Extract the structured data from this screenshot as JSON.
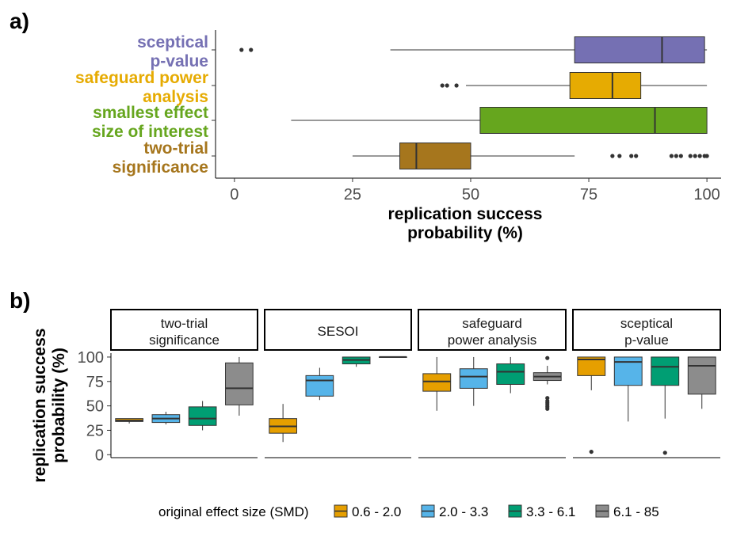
{
  "panel_a_label": "a)",
  "panel_b_label": "b)",
  "colors": {
    "sceptical": "#7570b3",
    "safeguard": "#e6ab02",
    "sesoi": "#66a61e",
    "two_trial": "#a6761d",
    "g1": "#E69F00",
    "g2": "#56B4E9",
    "g3": "#009E73",
    "g4": "#8C8C8C"
  },
  "chart_data": [
    {
      "type": "boxplot",
      "orientation": "horizontal",
      "xlabel": "replication success\nprobability (%)",
      "xlim": [
        -4,
        103
      ],
      "xticks": [
        0,
        25,
        50,
        75,
        100
      ],
      "categories": [
        {
          "label": "sceptical\np-value",
          "color": "#7570b3",
          "whisker_low": 33,
          "q1": 72,
          "median": 90.5,
          "q3": 99.5,
          "whisker_high": 100,
          "outliers": [
            1.5,
            3.5
          ]
        },
        {
          "label": "safeguard power\nanalysis",
          "color": "#e6ab02",
          "whisker_low": 49,
          "q1": 71,
          "median": 80,
          "q3": 86,
          "whisker_high": 100,
          "outliers": [
            44,
            45,
            47
          ]
        },
        {
          "label": "smallest effect\nsize of interest",
          "color": "#66a61e",
          "whisker_low": 12,
          "q1": 52,
          "median": 89,
          "q3": 100,
          "whisker_high": 100,
          "outliers": []
        },
        {
          "label": "two-trial\nsignificance",
          "color": "#a6761d",
          "whisker_low": 25,
          "q1": 35,
          "median": 38.5,
          "q3": 50,
          "whisker_high": 72,
          "outliers": [
            80,
            81.5,
            84,
            85,
            92.5,
            93.5,
            94.5,
            96.5,
            97.5,
            98.5,
            99.5,
            100
          ]
        }
      ]
    },
    {
      "type": "boxplot",
      "orientation": "vertical",
      "facets": [
        {
          "title": "two-trial\nsignificance",
          "boxes": [
            {
              "whisker_low": 32,
              "q1": 34,
              "median": 35,
              "q3": 37,
              "whisker_high": 37,
              "outliers": []
            },
            {
              "whisker_low": 31,
              "q1": 33,
              "median": 37,
              "q3": 41,
              "whisker_high": 44,
              "outliers": []
            },
            {
              "whisker_low": 25,
              "q1": 30,
              "median": 37,
              "q3": 49,
              "whisker_high": 55,
              "outliers": []
            },
            {
              "whisker_low": 40,
              "q1": 51,
              "median": 68,
              "q3": 94,
              "whisker_high": 100,
              "outliers": []
            }
          ]
        },
        {
          "title": "SESOI",
          "boxes": [
            {
              "whisker_low": 13,
              "q1": 22,
              "median": 29,
              "q3": 37,
              "whisker_high": 52,
              "outliers": []
            },
            {
              "whisker_low": 56,
              "q1": 60,
              "median": 76,
              "q3": 81,
              "whisker_high": 89,
              "outliers": []
            },
            {
              "whisker_low": 90,
              "q1": 93,
              "median": 97,
              "q3": 100,
              "whisker_high": 100,
              "outliers": []
            },
            {
              "whisker_low": 100,
              "q1": 100,
              "median": 100,
              "q3": 100,
              "whisker_high": 100,
              "outliers": []
            }
          ]
        },
        {
          "title": "safeguard\npower analysis",
          "boxes": [
            {
              "whisker_low": 45,
              "q1": 65,
              "median": 75,
              "q3": 83,
              "whisker_high": 100,
              "outliers": []
            },
            {
              "whisker_low": 50,
              "q1": 68,
              "median": 80,
              "q3": 88,
              "whisker_high": 100,
              "outliers": []
            },
            {
              "whisker_low": 63,
              "q1": 72,
              "median": 85,
              "q3": 93,
              "whisker_high": 100,
              "outliers": []
            },
            {
              "whisker_low": 72,
              "q1": 76,
              "median": 80,
              "q3": 84,
              "whisker_high": 91,
              "outliers": [
                47,
                49,
                51,
                53,
                55,
                58,
                99
              ]
            }
          ]
        },
        {
          "title": "sceptical\np-value",
          "boxes": [
            {
              "whisker_low": 66,
              "q1": 81,
              "median": 97.5,
              "q3": 100,
              "whisker_high": 100,
              "outliers": [
                3
              ]
            },
            {
              "whisker_low": 34,
              "q1": 71,
              "median": 95,
              "q3": 100,
              "whisker_high": 100,
              "outliers": []
            },
            {
              "whisker_low": 37,
              "q1": 71,
              "median": 90,
              "q3": 100,
              "whisker_high": 100,
              "outliers": [
                2
              ]
            },
            {
              "whisker_low": 47,
              "q1": 62,
              "median": 91,
              "q3": 100,
              "whisker_high": 100,
              "outliers": []
            }
          ]
        }
      ],
      "ylabel": "replication success\nprobability (%)",
      "ylim": [
        -3,
        104
      ],
      "yticks": [
        0,
        25,
        50,
        75,
        100
      ],
      "legend": {
        "title": "original effect size (SMD)",
        "items": [
          "0.6 - 2.0",
          "2.0 - 3.3",
          "3.3 - 6.1",
          "6.1 - 85"
        ],
        "position": "bottom"
      }
    }
  ]
}
